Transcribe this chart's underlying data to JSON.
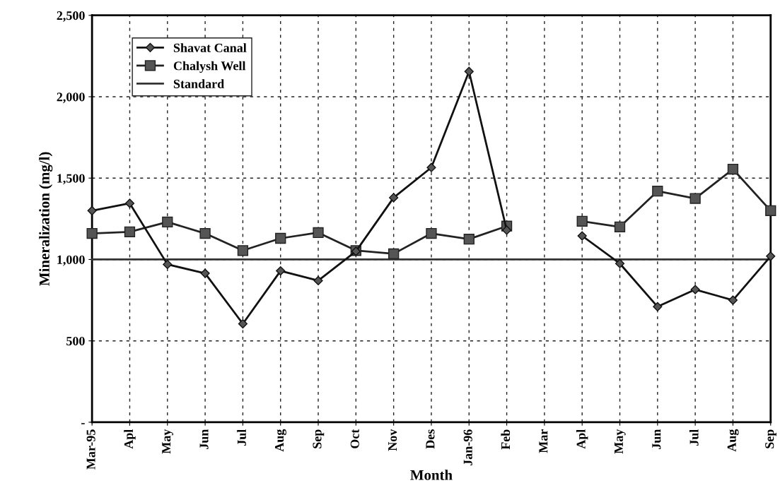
{
  "chart_data": {
    "type": "line",
    "xlabel": "Month",
    "ylabel": "Mineralization (mg/l)",
    "categories": [
      "Mar-95",
      "Apl",
      "May",
      "Jun",
      "Jul",
      "Aug",
      "Sep",
      "Oct",
      "Nov",
      "Des",
      "Jan-96",
      "Feb",
      "Mar",
      "Apl",
      "May",
      "Jun",
      "Jul",
      "Aug",
      "Sep"
    ],
    "series": [
      {
        "name": "Shavat Canal",
        "color": "#111111",
        "marker": "diamond",
        "values": [
          1300,
          1345,
          970,
          915,
          605,
          930,
          870,
          1050,
          1380,
          1565,
          2155,
          1180,
          null,
          1145,
          975,
          710,
          815,
          750,
          1020
        ]
      },
      {
        "name": "Chalysh Well",
        "color": "#222222",
        "marker": "square",
        "values": [
          1160,
          1170,
          1230,
          1160,
          1055,
          1130,
          1165,
          1055,
          1035,
          1160,
          1125,
          1205,
          null,
          1235,
          1200,
          1420,
          1375,
          1555,
          1300
        ]
      },
      {
        "name": "Standard",
        "color": "#333333",
        "marker": "none",
        "values": [
          1000,
          1000,
          1000,
          1000,
          1000,
          1000,
          1000,
          1000,
          1000,
          1000,
          1000,
          1000,
          1000,
          1000,
          1000,
          1000,
          1000,
          1000,
          1000
        ]
      }
    ],
    "ylim": [
      0,
      2500
    ],
    "yticks": [
      {
        "value": 0,
        "label": "-"
      },
      500,
      {
        "value": 1000,
        "label": "1,000"
      },
      {
        "value": 1500,
        "label": "1,500"
      },
      {
        "value": 2000,
        "label": "2,000"
      },
      {
        "value": 2500,
        "label": "2,500"
      }
    ],
    "grid": true,
    "legend": "top left",
    "line_style": "solid"
  }
}
